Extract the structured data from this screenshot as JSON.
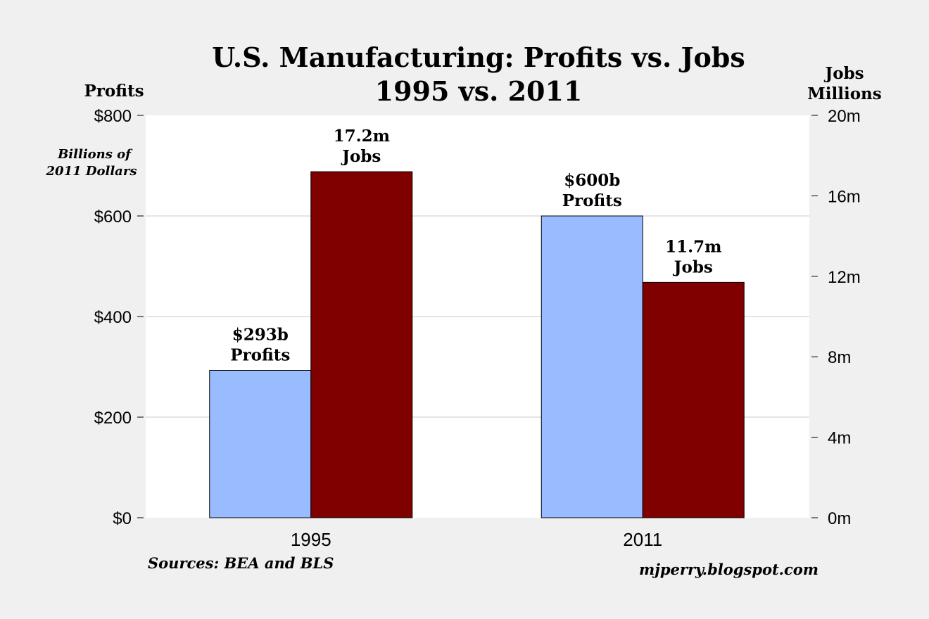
{
  "chart_data": {
    "type": "bar",
    "title": "U.S. Manufacturing: Profits vs. Jobs",
    "subtitle": "1995 vs. 2011",
    "left_axis_title": "Profits",
    "left_axis_unit": [
      "Billions of",
      "2011 Dollars"
    ],
    "right_axis_title": [
      "Jobs",
      "Millions"
    ],
    "categories": [
      "1995",
      "2011"
    ],
    "left_ylim": [
      0,
      800
    ],
    "left_ticks": [
      0,
      200,
      400,
      600,
      800
    ],
    "left_tick_labels": [
      "$0",
      "$200",
      "$400",
      "$600",
      "$800"
    ],
    "right_ylim": [
      0,
      20
    ],
    "right_ticks": [
      0,
      4,
      8,
      12,
      16,
      20
    ],
    "right_tick_labels": [
      "0m",
      "4m",
      "8m",
      "12m",
      "16m",
      "20m"
    ],
    "grid": true,
    "series": [
      {
        "name": "Profits",
        "axis": "left",
        "color": "#99bbff",
        "values": [
          293,
          600
        ],
        "data_labels": [
          [
            "$293b",
            "Profits"
          ],
          [
            "$600b",
            "Profits"
          ]
        ]
      },
      {
        "name": "Jobs",
        "axis": "right",
        "color": "#800000",
        "values": [
          17.2,
          11.7
        ],
        "data_labels": [
          [
            "17.2m",
            "Jobs"
          ],
          [
            "11.7m",
            "Jobs"
          ]
        ]
      }
    ],
    "source": "Sources: BEA and BLS",
    "credit": "mjperry.blogspot.com"
  }
}
